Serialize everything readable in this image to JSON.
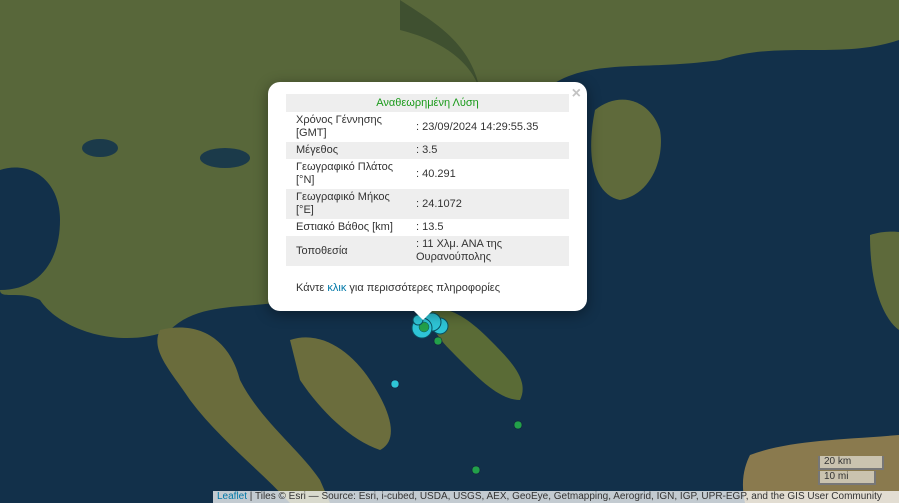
{
  "popup": {
    "title": "Αναθεωρημένη Λύση",
    "close": "×",
    "rows": [
      {
        "label": "Χρόνος Γέννησης [GMT]",
        "value": ": 23/09/2024 14:29:55.35"
      },
      {
        "label": "Μέγεθος",
        "value": ": 3.5"
      },
      {
        "label": "Γεωγραφικό Πλάτος [°N]",
        "value": ": 40.291"
      },
      {
        "label": "Γεωγραφικό Μήκος [°E]",
        "value": ": 24.1072"
      },
      {
        "label": "Εστιακό Βάθος [km]",
        "value": ": 13.5"
      },
      {
        "label": "Τοποθεσία",
        "value": ": 11 Χλμ. ΑΝΑ της Ουρανούπολης"
      }
    ],
    "more_prefix": "Κάντε",
    "more_link": "κλικ",
    "more_suffix": "για περισσότερες πληροφορίες"
  },
  "scale": {
    "metric": "20 km",
    "imperial": "10 mi"
  },
  "attribution": {
    "leaflet": "Leaflet",
    "text": " | Tiles © Esri — Source: Esri, i-cubed, USDA, USGS, AEX, GeoEye, Getmapping, Aerogrid, IGN, IGP, UPR-EGP, and the GIS User Community"
  },
  "colors": {
    "sea": "#12304a",
    "land": "#5b6a3a",
    "recent_marker": "#2ec4d6",
    "older_marker": "#22a04a",
    "title": "#1a9a1a"
  }
}
